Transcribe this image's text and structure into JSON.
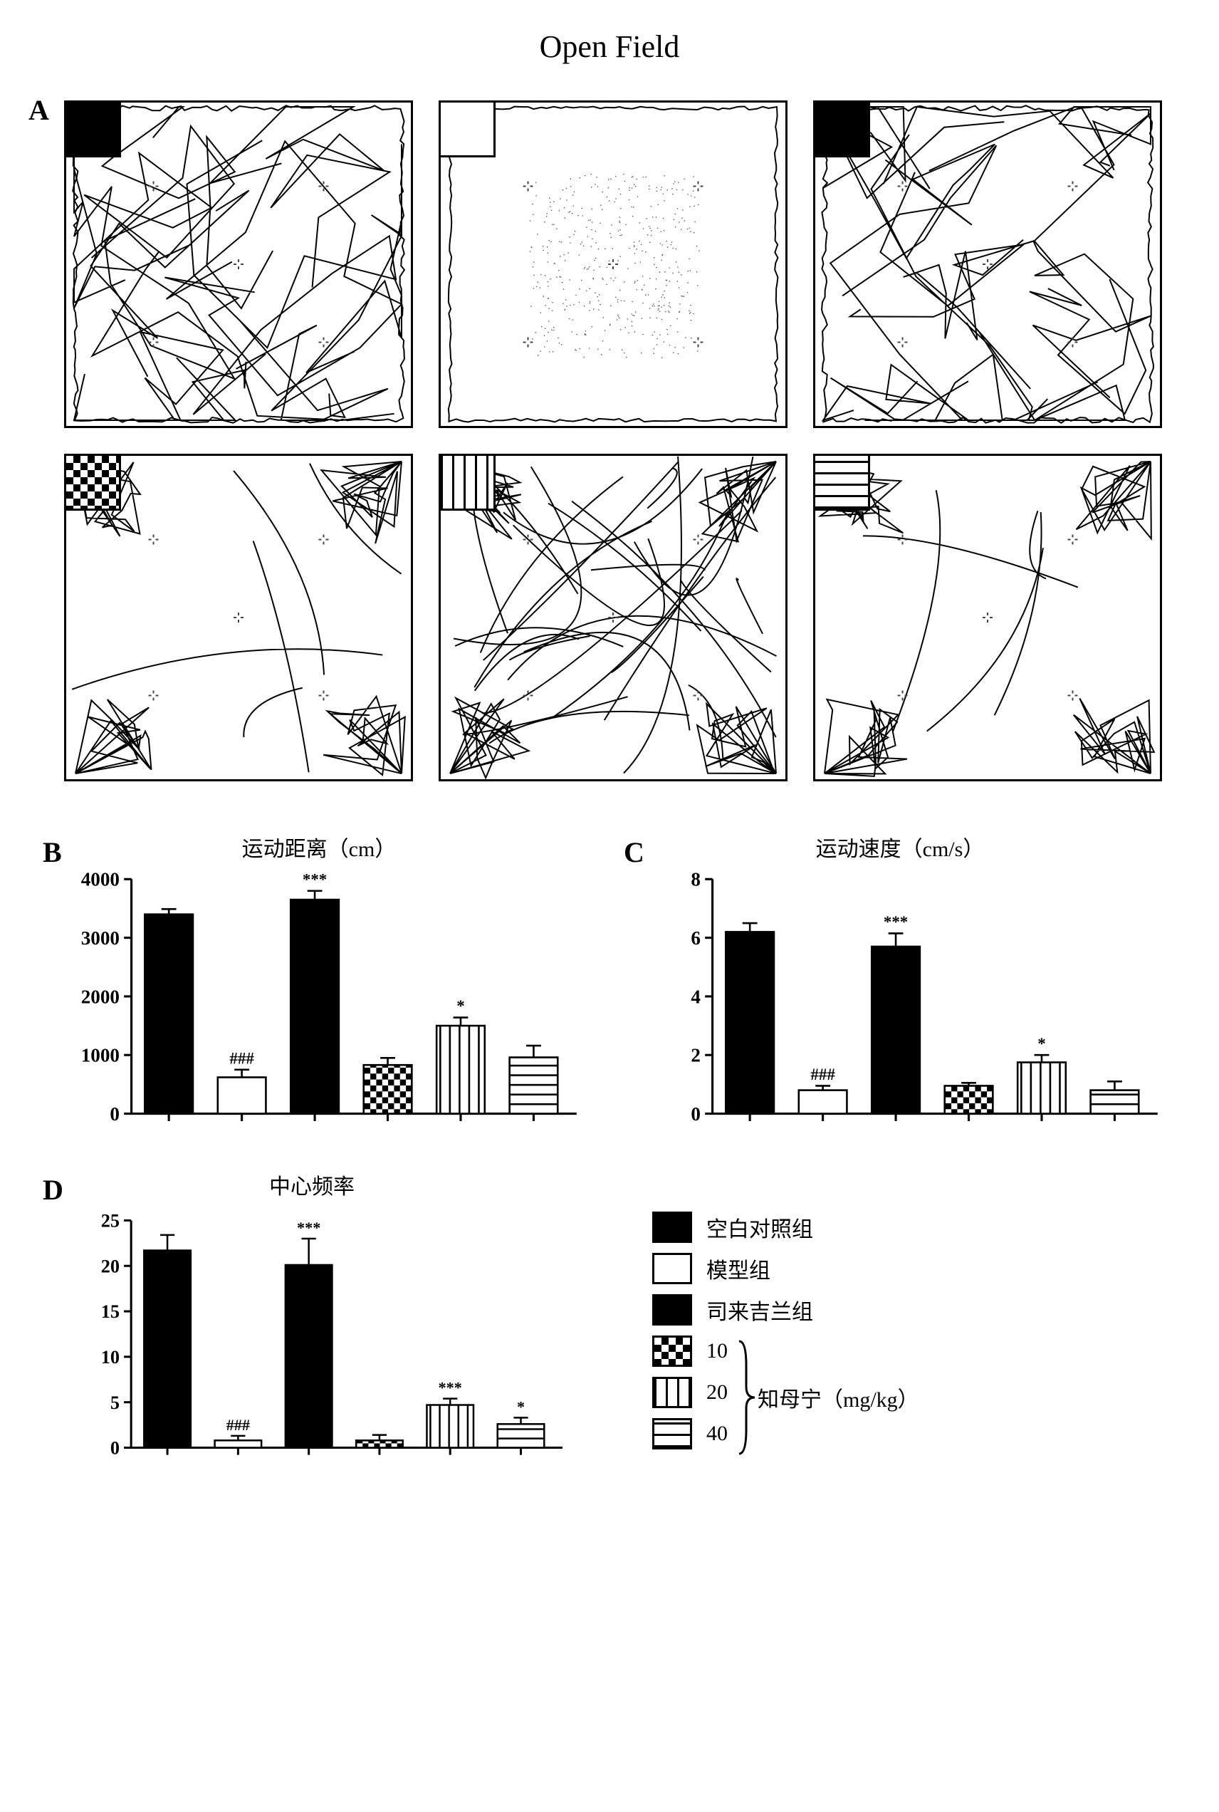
{
  "title": "Open Field",
  "panels": {
    "A": "A",
    "B": "B",
    "C": "C",
    "D": "D"
  },
  "tracks": [
    {
      "pattern": "solid",
      "density": "dense"
    },
    {
      "pattern": "hollow",
      "density": "sparse"
    },
    {
      "pattern": "solid",
      "density": "dense"
    },
    {
      "pattern": "checker",
      "density": "corners"
    },
    {
      "pattern": "vstripe",
      "density": "medium"
    },
    {
      "pattern": "hstripe",
      "density": "corners"
    }
  ],
  "chartB": {
    "title": "运动距离（cm）",
    "ylim": [
      0,
      4000
    ],
    "yticks": [
      0,
      1000,
      2000,
      3000,
      4000
    ],
    "bars": [
      {
        "pattern": "solid",
        "value": 3400,
        "err": 90,
        "sig": ""
      },
      {
        "pattern": "hollow",
        "value": 620,
        "err": 130,
        "sig": "###"
      },
      {
        "pattern": "solid",
        "value": 3650,
        "err": 150,
        "sig": "***"
      },
      {
        "pattern": "checker",
        "value": 830,
        "err": 120,
        "sig": ""
      },
      {
        "pattern": "vstripe",
        "value": 1500,
        "err": 140,
        "sig": "*"
      },
      {
        "pattern": "hstripe",
        "value": 960,
        "err": 200,
        "sig": ""
      }
    ]
  },
  "chartC": {
    "title": "运动速度（cm/s）",
    "ylim": [
      0,
      8
    ],
    "yticks": [
      0,
      2,
      4,
      6,
      8
    ],
    "bars": [
      {
        "pattern": "solid",
        "value": 6.2,
        "err": 0.3,
        "sig": ""
      },
      {
        "pattern": "hollow",
        "value": 0.8,
        "err": 0.15,
        "sig": "###"
      },
      {
        "pattern": "solid",
        "value": 5.7,
        "err": 0.45,
        "sig": "***"
      },
      {
        "pattern": "checker",
        "value": 0.95,
        "err": 0.1,
        "sig": ""
      },
      {
        "pattern": "vstripe",
        "value": 1.75,
        "err": 0.25,
        "sig": "*"
      },
      {
        "pattern": "hstripe",
        "value": 0.8,
        "err": 0.3,
        "sig": ""
      }
    ]
  },
  "chartD": {
    "title": "中心频率",
    "ylim": [
      0,
      25
    ],
    "yticks": [
      0,
      5,
      10,
      15,
      20,
      25
    ],
    "bars": [
      {
        "pattern": "solid",
        "value": 21.7,
        "err": 1.7,
        "sig": ""
      },
      {
        "pattern": "hollow",
        "value": 0.8,
        "err": 0.5,
        "sig": "###"
      },
      {
        "pattern": "solid",
        "value": 20.1,
        "err": 2.9,
        "sig": "***"
      },
      {
        "pattern": "checker",
        "value": 0.8,
        "err": 0.6,
        "sig": ""
      },
      {
        "pattern": "vstripe",
        "value": 4.7,
        "err": 0.7,
        "sig": "***"
      },
      {
        "pattern": "hstripe",
        "value": 2.6,
        "err": 0.7,
        "sig": "*"
      }
    ]
  },
  "legend": {
    "items": [
      {
        "pattern": "solid",
        "label": "空白对照组"
      },
      {
        "pattern": "hollow",
        "label": "模型组"
      },
      {
        "pattern": "solid",
        "label": "司来吉兰组"
      }
    ],
    "group": {
      "items": [
        {
          "pattern": "checker",
          "label": "10"
        },
        {
          "pattern": "vstripe",
          "label": "20"
        },
        {
          "pattern": "hstripe",
          "label": "40"
        }
      ],
      "group_label": "知母宁（mg/kg）"
    }
  },
  "colors": {
    "ink": "#000000",
    "bg": "#ffffff"
  }
}
